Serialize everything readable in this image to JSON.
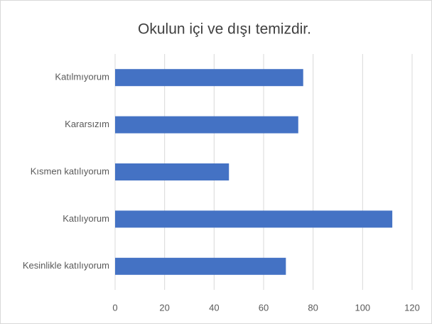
{
  "chart_data": {
    "type": "barh",
    "title": "Okulun içi ve dışı temizdir.",
    "categories": [
      "Katılmıyorum",
      "Kararsızım",
      "Kısmen katılıyorum",
      "Katılıyorum",
      "Kesinlikle katılıyorum"
    ],
    "values": [
      76,
      74,
      46,
      112,
      69
    ],
    "color": "#4472c4",
    "xlim": [
      0,
      120
    ],
    "xticks": [
      0,
      20,
      40,
      60,
      80,
      100,
      120
    ],
    "grid": true
  }
}
